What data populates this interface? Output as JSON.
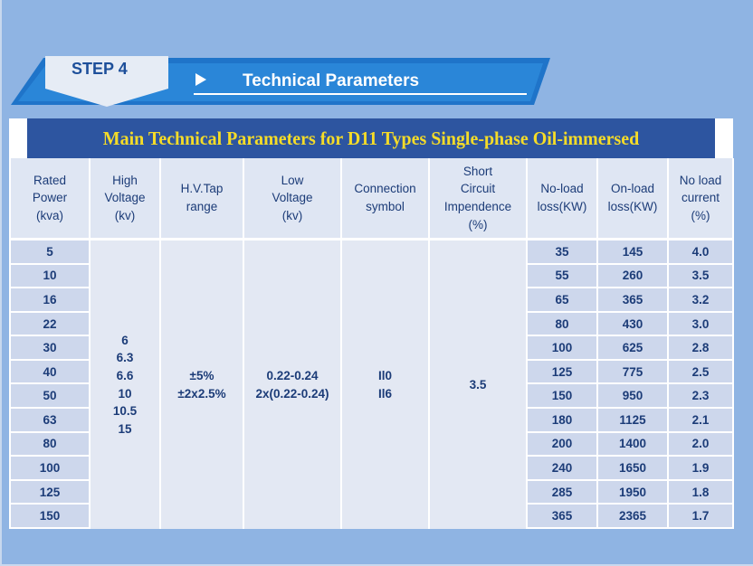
{
  "header": {
    "step_label": "STEP 4",
    "section_title": "Technical Parameters",
    "play_icon": "play-triangle-icon"
  },
  "table": {
    "title": "Main Technical Parameters for D11 Types Single-phase Oil-immersed",
    "columns": [
      [
        "Rated",
        "Power",
        "(kva)"
      ],
      [
        "High",
        "Voltage",
        "(kv)"
      ],
      [
        "H.V.Tap",
        "range"
      ],
      [
        "Low",
        "Voltage",
        "(kv)"
      ],
      [
        "Connection",
        "symbol"
      ],
      [
        "Short",
        "Circuit",
        "Impendence",
        "(%)"
      ],
      [
        "No-load",
        "loss(KW)"
      ],
      [
        "On-load",
        "loss(KW)"
      ],
      [
        "No load",
        "current",
        "(%)"
      ]
    ],
    "shared": {
      "high_voltage": [
        "6",
        "6.3",
        "6.6",
        "10",
        "10.5",
        "15"
      ],
      "tap_range": [
        "±5%",
        "±2x2.5%"
      ],
      "low_voltage": [
        "0.22-0.24",
        "2x(0.22-0.24)"
      ],
      "connection": [
        "Il0",
        "Il6"
      ],
      "short_circuit": "3.5"
    },
    "rows": [
      {
        "power": "5",
        "no_load": "35",
        "on_load": "145",
        "current": "4.0"
      },
      {
        "power": "10",
        "no_load": "55",
        "on_load": "260",
        "current": "3.5"
      },
      {
        "power": "16",
        "no_load": "65",
        "on_load": "365",
        "current": "3.2"
      },
      {
        "power": "22",
        "no_load": "80",
        "on_load": "430",
        "current": "3.0"
      },
      {
        "power": "30",
        "no_load": "100",
        "on_load": "625",
        "current": "2.8"
      },
      {
        "power": "40",
        "no_load": "125",
        "on_load": "775",
        "current": "2.5"
      },
      {
        "power": "50",
        "no_load": "150",
        "on_load": "950",
        "current": "2.3"
      },
      {
        "power": "63",
        "no_load": "180",
        "on_load": "1125",
        "current": "2.1"
      },
      {
        "power": "80",
        "no_load": "200",
        "on_load": "1400",
        "current": "2.0"
      },
      {
        "power": "100",
        "no_load": "240",
        "on_load": "1650",
        "current": "1.9"
      },
      {
        "power": "125",
        "no_load": "285",
        "on_load": "1950",
        "current": "1.8"
      },
      {
        "power": "150",
        "no_load": "365",
        "on_load": "2365",
        "current": "1.7"
      }
    ]
  },
  "colors": {
    "background": "#8fb4e3",
    "banner_blue": "#1f74c9",
    "title_bar": "#2d55a0",
    "title_text": "#f5dc28",
    "header_cell": "#dfe6f3",
    "data_cell": "#cdd7ec",
    "text": "#1c3c78"
  }
}
